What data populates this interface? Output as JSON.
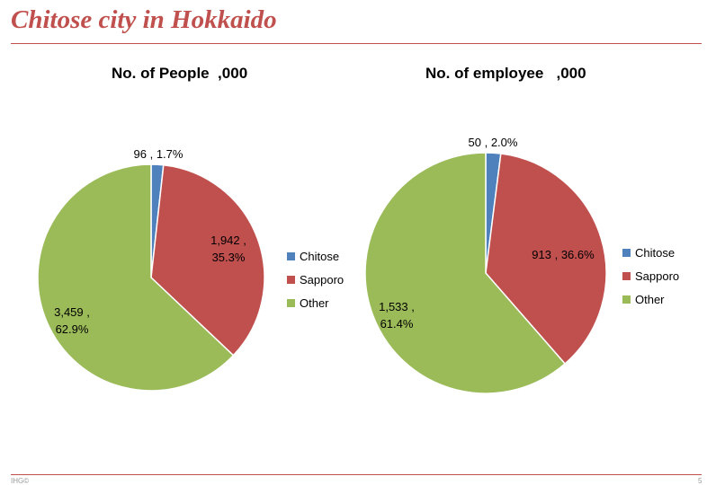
{
  "slide": {
    "title": "Chitose city in Hokkaido",
    "title_color": "#C0504D",
    "rule_color": "#C0504D",
    "footer_left": "IHG©",
    "page_number": "5"
  },
  "colors": {
    "Chitose": "#4F81BD",
    "Sapporo": "#C0504D",
    "Other": "#9BBB59"
  },
  "chart_data": [
    {
      "type": "pie",
      "title": "No. of People  ,000",
      "categories": [
        "Chitose",
        "Sapporo",
        "Other"
      ],
      "values": [
        96,
        1942,
        3459
      ],
      "data_labels": [
        [
          "96 , 1.7%"
        ],
        [
          "1,942 ,",
          "35.3%"
        ],
        [
          "3,459 ,",
          "62.9%"
        ]
      ],
      "legend": [
        "Chitose",
        "Sapporo",
        "Other"
      ],
      "legend_position": "right"
    },
    {
      "type": "pie",
      "title": "No. of employee   ,000",
      "categories": [
        "Chitose",
        "Sapporo",
        "Other"
      ],
      "values": [
        50,
        913,
        1533
      ],
      "data_labels": [
        [
          "50 , 2.0%"
        ],
        [
          "913 , 36.6%"
        ],
        [
          "1,533 ,",
          "61.4%"
        ]
      ],
      "legend": [
        "Chitose",
        "Sapporo",
        "Other"
      ],
      "legend_position": "right"
    }
  ]
}
